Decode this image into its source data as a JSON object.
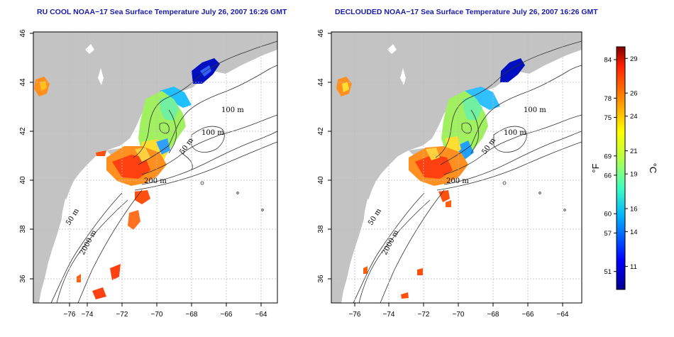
{
  "panels": [
    {
      "title": "RU COOL NOAA−17 Sea Surface Temperature July 26, 2007 16:26 GMT",
      "contour_labels": [
        "100 m",
        "100 m",
        "50 m",
        "200 m",
        "50 m",
        "2000 m"
      ]
    },
    {
      "title": "DECLOUDED NOAA−17 Sea Surface Temperature July 26, 2007 16:26 GMT",
      "contour_labels": [
        "100 m",
        "100 m",
        "50 m",
        "200 m",
        "50 m",
        "2000 m"
      ]
    }
  ],
  "axes": {
    "lon_ticks": [
      "−76",
      "−74",
      "−72",
      "−70",
      "−68",
      "−66",
      "−64"
    ],
    "lat_ticks": [
      "36",
      "38",
      "40",
      "42",
      "44",
      "46"
    ]
  },
  "colorbar": {
    "f_unit": "°F",
    "c_unit": "°C",
    "f_ticks": [
      "84",
      "78",
      "75",
      "69",
      "66",
      "60",
      "57",
      "51"
    ],
    "c_ticks": [
      "29",
      "26",
      "24",
      "21",
      "19",
      "16",
      "14",
      "11"
    ],
    "c_min": 9,
    "c_max": 30
  },
  "colors": {
    "land": "#c3c3c3",
    "title": "#1a1aa8",
    "grid": "#bdbdbd"
  }
}
